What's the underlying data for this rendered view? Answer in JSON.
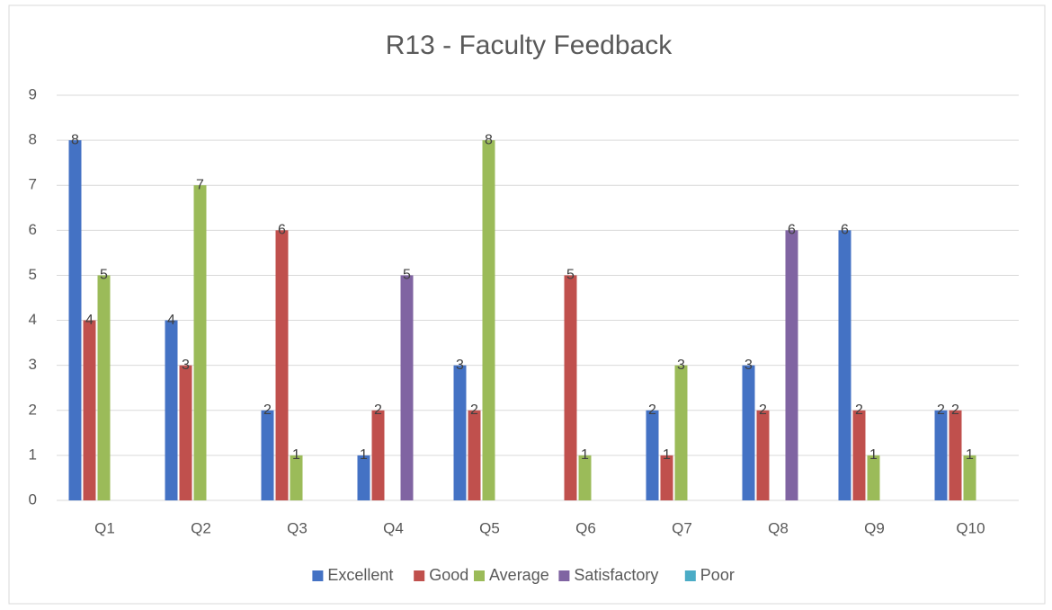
{
  "chart_data": {
    "type": "bar",
    "title": "R13 - Faculty Feedback",
    "categories": [
      "Q1",
      "Q2",
      "Q3",
      "Q4",
      "Q5",
      "Q6",
      "Q7",
      "Q8",
      "Q9",
      "Q10"
    ],
    "series": [
      {
        "name": "Excellent",
        "color": "#4472c4",
        "values": [
          8,
          4,
          2,
          1,
          3,
          0,
          2,
          3,
          6,
          2
        ]
      },
      {
        "name": "Good",
        "color": "#c0504d",
        "values": [
          4,
          3,
          6,
          2,
          2,
          5,
          1,
          2,
          2,
          2
        ]
      },
      {
        "name": "Average",
        "color": "#9bbb59",
        "values": [
          5,
          7,
          1,
          0,
          8,
          1,
          3,
          0,
          1,
          1
        ]
      },
      {
        "name": "Satisfactory",
        "color": "#8064a2",
        "values": [
          0,
          0,
          0,
          5,
          0,
          0,
          0,
          6,
          0,
          0
        ]
      },
      {
        "name": "Poor",
        "color": "#4bacc6",
        "values": [
          0,
          0,
          0,
          0,
          0,
          0,
          0,
          0,
          0,
          0
        ]
      }
    ],
    "ylim": [
      0,
      9
    ],
    "yticks": [
      0,
      1,
      2,
      3,
      4,
      5,
      6,
      7,
      8,
      9
    ],
    "grid": true,
    "legend": "bottom"
  }
}
